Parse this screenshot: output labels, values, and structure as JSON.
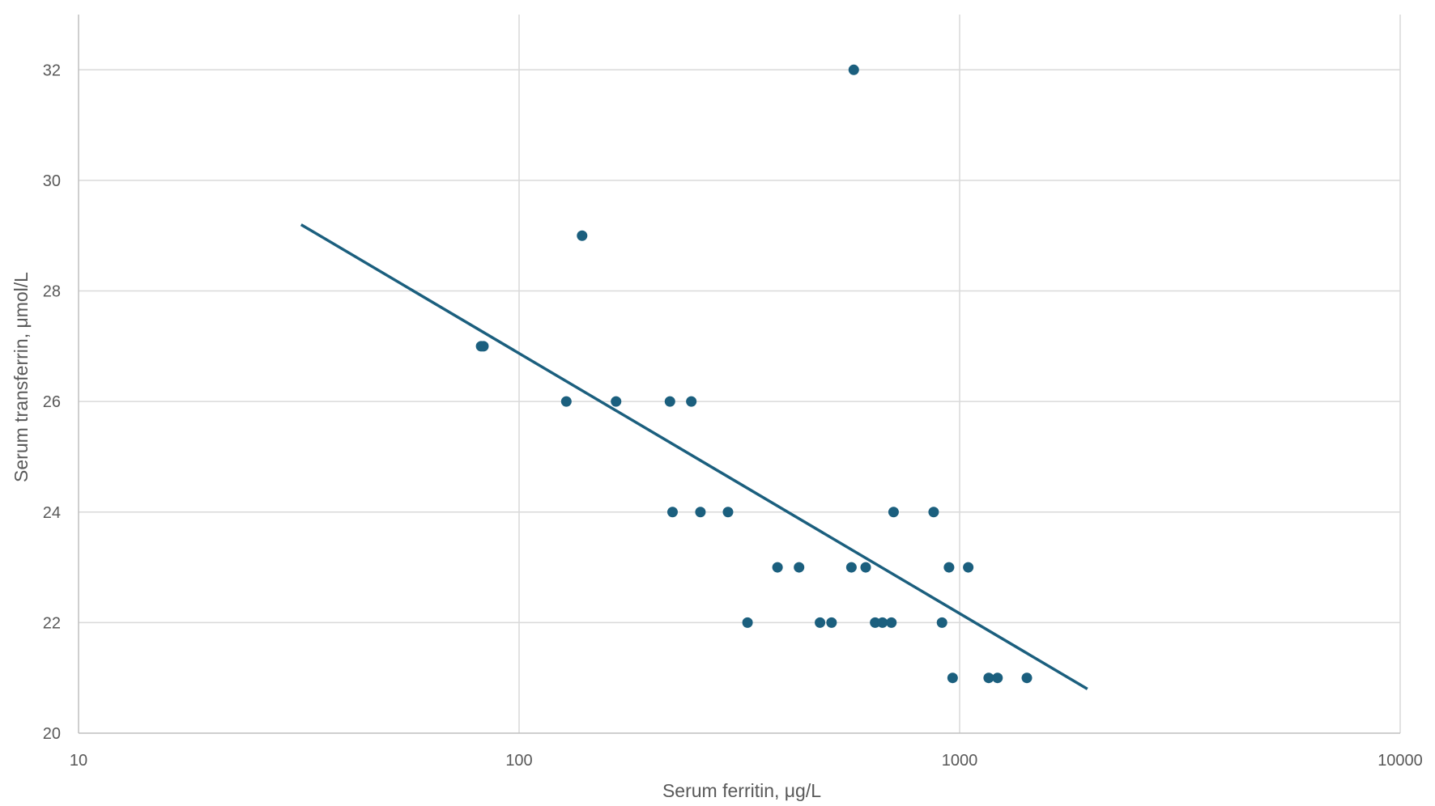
{
  "chart_data": {
    "type": "scatter",
    "title": "",
    "xlabel": "Serum ferritin, μg/L",
    "ylabel": "Serum transferrin, μmol/L",
    "x_scale": "log",
    "xlim": [
      10,
      10000
    ],
    "ylim": [
      20,
      33
    ],
    "x_ticks": [
      10,
      100,
      1000,
      10000
    ],
    "x_tick_labels": [
      "10",
      "100",
      "1000",
      "10000"
    ],
    "y_ticks": [
      20,
      22,
      24,
      26,
      28,
      30,
      32
    ],
    "y_tick_labels": [
      "20",
      "22",
      "24",
      "26",
      "28",
      "30",
      "32"
    ],
    "grid": true,
    "legend": "none",
    "colors": {
      "marker": "#1b5f7e",
      "trendline": "#1b5f7e",
      "grid": "#d9d9d9",
      "axis": "#bfbfbf",
      "text": "#595959"
    },
    "series": [
      {
        "points": [
          {
            "x": 82,
            "y": 27
          },
          {
            "x": 83,
            "y": 27
          },
          {
            "x": 128,
            "y": 26
          },
          {
            "x": 139,
            "y": 29
          },
          {
            "x": 166,
            "y": 26
          },
          {
            "x": 220,
            "y": 26
          },
          {
            "x": 246,
            "y": 26
          },
          {
            "x": 223,
            "y": 24
          },
          {
            "x": 258,
            "y": 24
          },
          {
            "x": 298,
            "y": 24
          },
          {
            "x": 330,
            "y": 22
          },
          {
            "x": 386,
            "y": 23
          },
          {
            "x": 432,
            "y": 23
          },
          {
            "x": 482,
            "y": 22
          },
          {
            "x": 512,
            "y": 22
          },
          {
            "x": 575,
            "y": 32
          },
          {
            "x": 568,
            "y": 23
          },
          {
            "x": 612,
            "y": 23
          },
          {
            "x": 643,
            "y": 22
          },
          {
            "x": 668,
            "y": 22
          },
          {
            "x": 700,
            "y": 22
          },
          {
            "x": 708,
            "y": 24
          },
          {
            "x": 873,
            "y": 24
          },
          {
            "x": 912,
            "y": 22
          },
          {
            "x": 946,
            "y": 23
          },
          {
            "x": 964,
            "y": 21
          },
          {
            "x": 1046,
            "y": 23
          },
          {
            "x": 1164,
            "y": 21
          },
          {
            "x": 1219,
            "y": 21
          },
          {
            "x": 1421,
            "y": 21
          }
        ]
      }
    ],
    "trendline": {
      "type": "logarithmic",
      "x_start": 32,
      "y_start": 29.2,
      "x_end": 1950,
      "y_end": 20.8
    }
  }
}
